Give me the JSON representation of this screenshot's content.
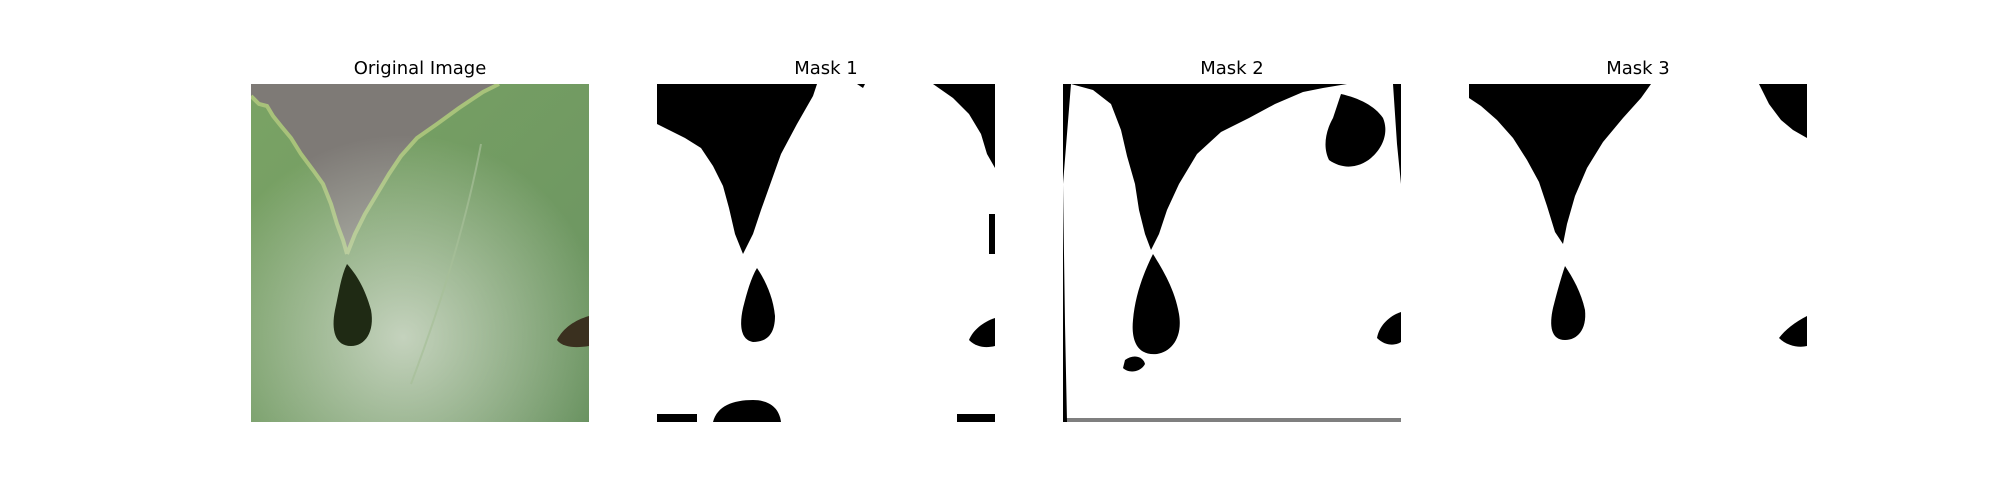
{
  "figure": {
    "panels": [
      {
        "title": "Original Image"
      },
      {
        "title": "Mask 1"
      },
      {
        "title": "Mask 2"
      },
      {
        "title": "Mask 3"
      }
    ]
  },
  "colors": {
    "leaf_green": "#6f9a63",
    "leaf_green_light": "#8fb07c",
    "powdery_mildew": "#c9d2c3",
    "background_gray": "#7e7a76",
    "hole_dark": "#1f2a14",
    "mask_foreground": "#ffffff",
    "mask_background": "#000000"
  }
}
